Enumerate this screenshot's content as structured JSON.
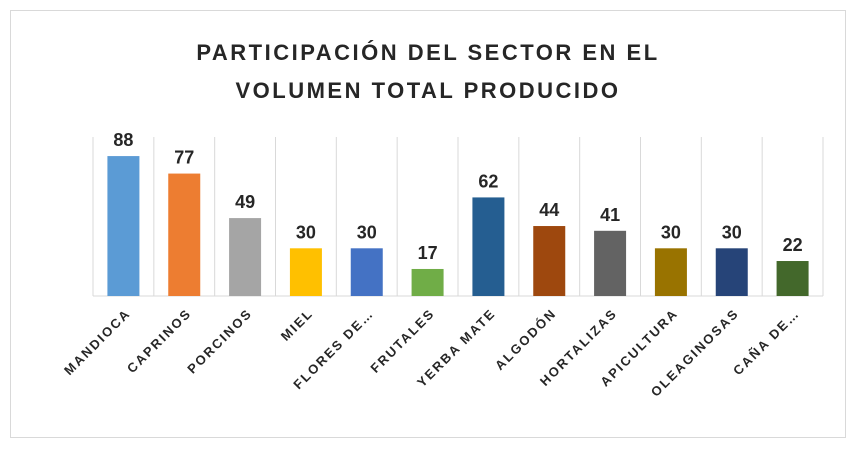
{
  "chart_data": {
    "type": "bar",
    "title": "PARTICIPACIÓN DEL SECTOR EN EL VOLUMEN TOTAL PRODUCIDO",
    "categories": [
      "MANDIOCA",
      "CAPRINOS",
      "PORCINOS",
      "MIEL",
      "FLORES DE…",
      "FRUTALES",
      "YERBA MATE",
      "ALGODÓN",
      "HORTALIZAS",
      "APICULTURA",
      "OLEAGINOSAS",
      "CAÑA DE…"
    ],
    "values": [
      88,
      77,
      49,
      30,
      30,
      17,
      62,
      44,
      41,
      30,
      30,
      22
    ],
    "colors": [
      "#5b9bd5",
      "#ed7d31",
      "#a5a5a5",
      "#ffc000",
      "#4472c4",
      "#70ad47",
      "#255e91",
      "#9e480e",
      "#636363",
      "#997300",
      "#264478",
      "#43682b"
    ],
    "ylim": [
      0,
      100
    ],
    "grid": true
  }
}
